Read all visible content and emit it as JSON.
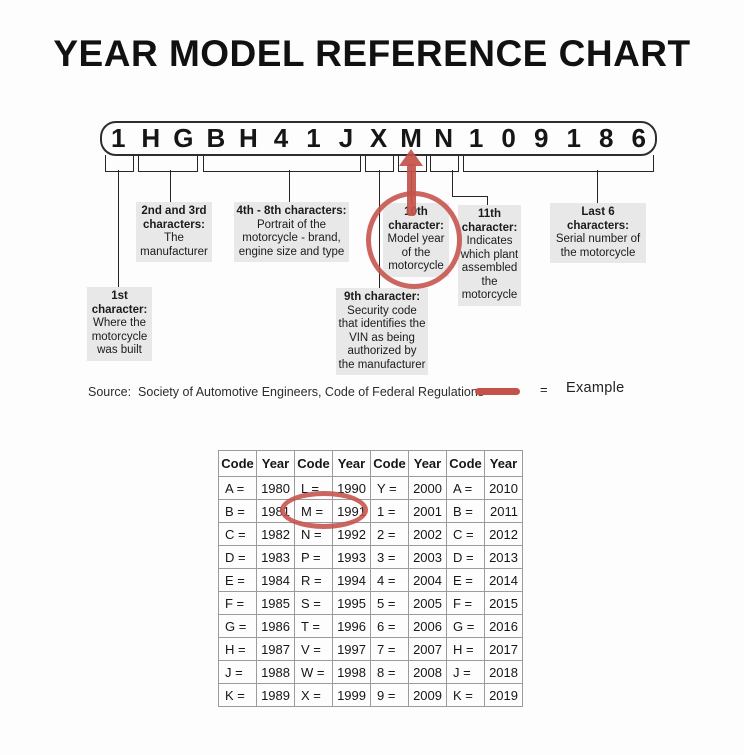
{
  "title": "YEAR MODEL REFERENCE CHART",
  "vin": {
    "characters": [
      "1",
      "H",
      "G",
      "B",
      "H",
      "4",
      "1",
      "J",
      "X",
      "M",
      "N",
      "1",
      "0",
      "9",
      "1",
      "8",
      "6"
    ]
  },
  "callouts": [
    {
      "heading": "1st character:",
      "body": "Where the motorcycle was built"
    },
    {
      "heading": "2nd and 3rd characters:",
      "body": "The manufacturer"
    },
    {
      "heading": "4th - 8th characters:",
      "body": "Portrait of the motorcycle - brand, engine size and type"
    },
    {
      "heading": "9th character:",
      "body": "Security code that identifies the VIN as being authorized by the manufacturer"
    },
    {
      "heading": "10th character:",
      "body": "Model year of the motorcycle"
    },
    {
      "heading": "11th character:",
      "body": "Indicates which plant assembled the motorcycle"
    },
    {
      "heading": "Last 6 characters:",
      "body": "Serial number of the motorcycle"
    }
  ],
  "source": {
    "text": "Source:  Society of Automotive Engineers, Code of Federal Regulations"
  },
  "legend": {
    "equals_sign": "=",
    "label": "Example"
  },
  "colors": {
    "example_red": "#c4524a",
    "callout_background": "#e8e8e8"
  },
  "year_table": {
    "headers": [
      "Code",
      "Year",
      "Code",
      "Year",
      "Code",
      "Year",
      "Code",
      "Year"
    ],
    "rows": [
      [
        "A =",
        "1980",
        "L =",
        "1990",
        "Y =",
        "2000",
        "A =",
        "2010"
      ],
      [
        "B =",
        "1981",
        "M =",
        "1991",
        "1 =",
        "2001",
        "B =",
        "2011"
      ],
      [
        "C =",
        "1982",
        "N =",
        "1992",
        "2 =",
        "2002",
        "C =",
        "2012"
      ],
      [
        "D =",
        "1983",
        "P =",
        "1993",
        "3 =",
        "2003",
        "D =",
        "2013"
      ],
      [
        "E =",
        "1984",
        "R =",
        "1994",
        "4 =",
        "2004",
        "E =",
        "2014"
      ],
      [
        "F =",
        "1985",
        "S =",
        "1995",
        "5 =",
        "2005",
        "F =",
        "2015"
      ],
      [
        "G =",
        "1986",
        "T =",
        "1996",
        "6 =",
        "2006",
        "G =",
        "2016"
      ],
      [
        "H =",
        "1987",
        "V =",
        "1997",
        "7 =",
        "2007",
        "H =",
        "2017"
      ],
      [
        "J =",
        "1988",
        "W =",
        "1998",
        "8 =",
        "2008",
        "J =",
        "2018"
      ],
      [
        "K =",
        "1989",
        "X =",
        "1999",
        "9 =",
        "2009",
        "K =",
        "2019"
      ]
    ],
    "highlighted_mapping": "M = 1991"
  }
}
